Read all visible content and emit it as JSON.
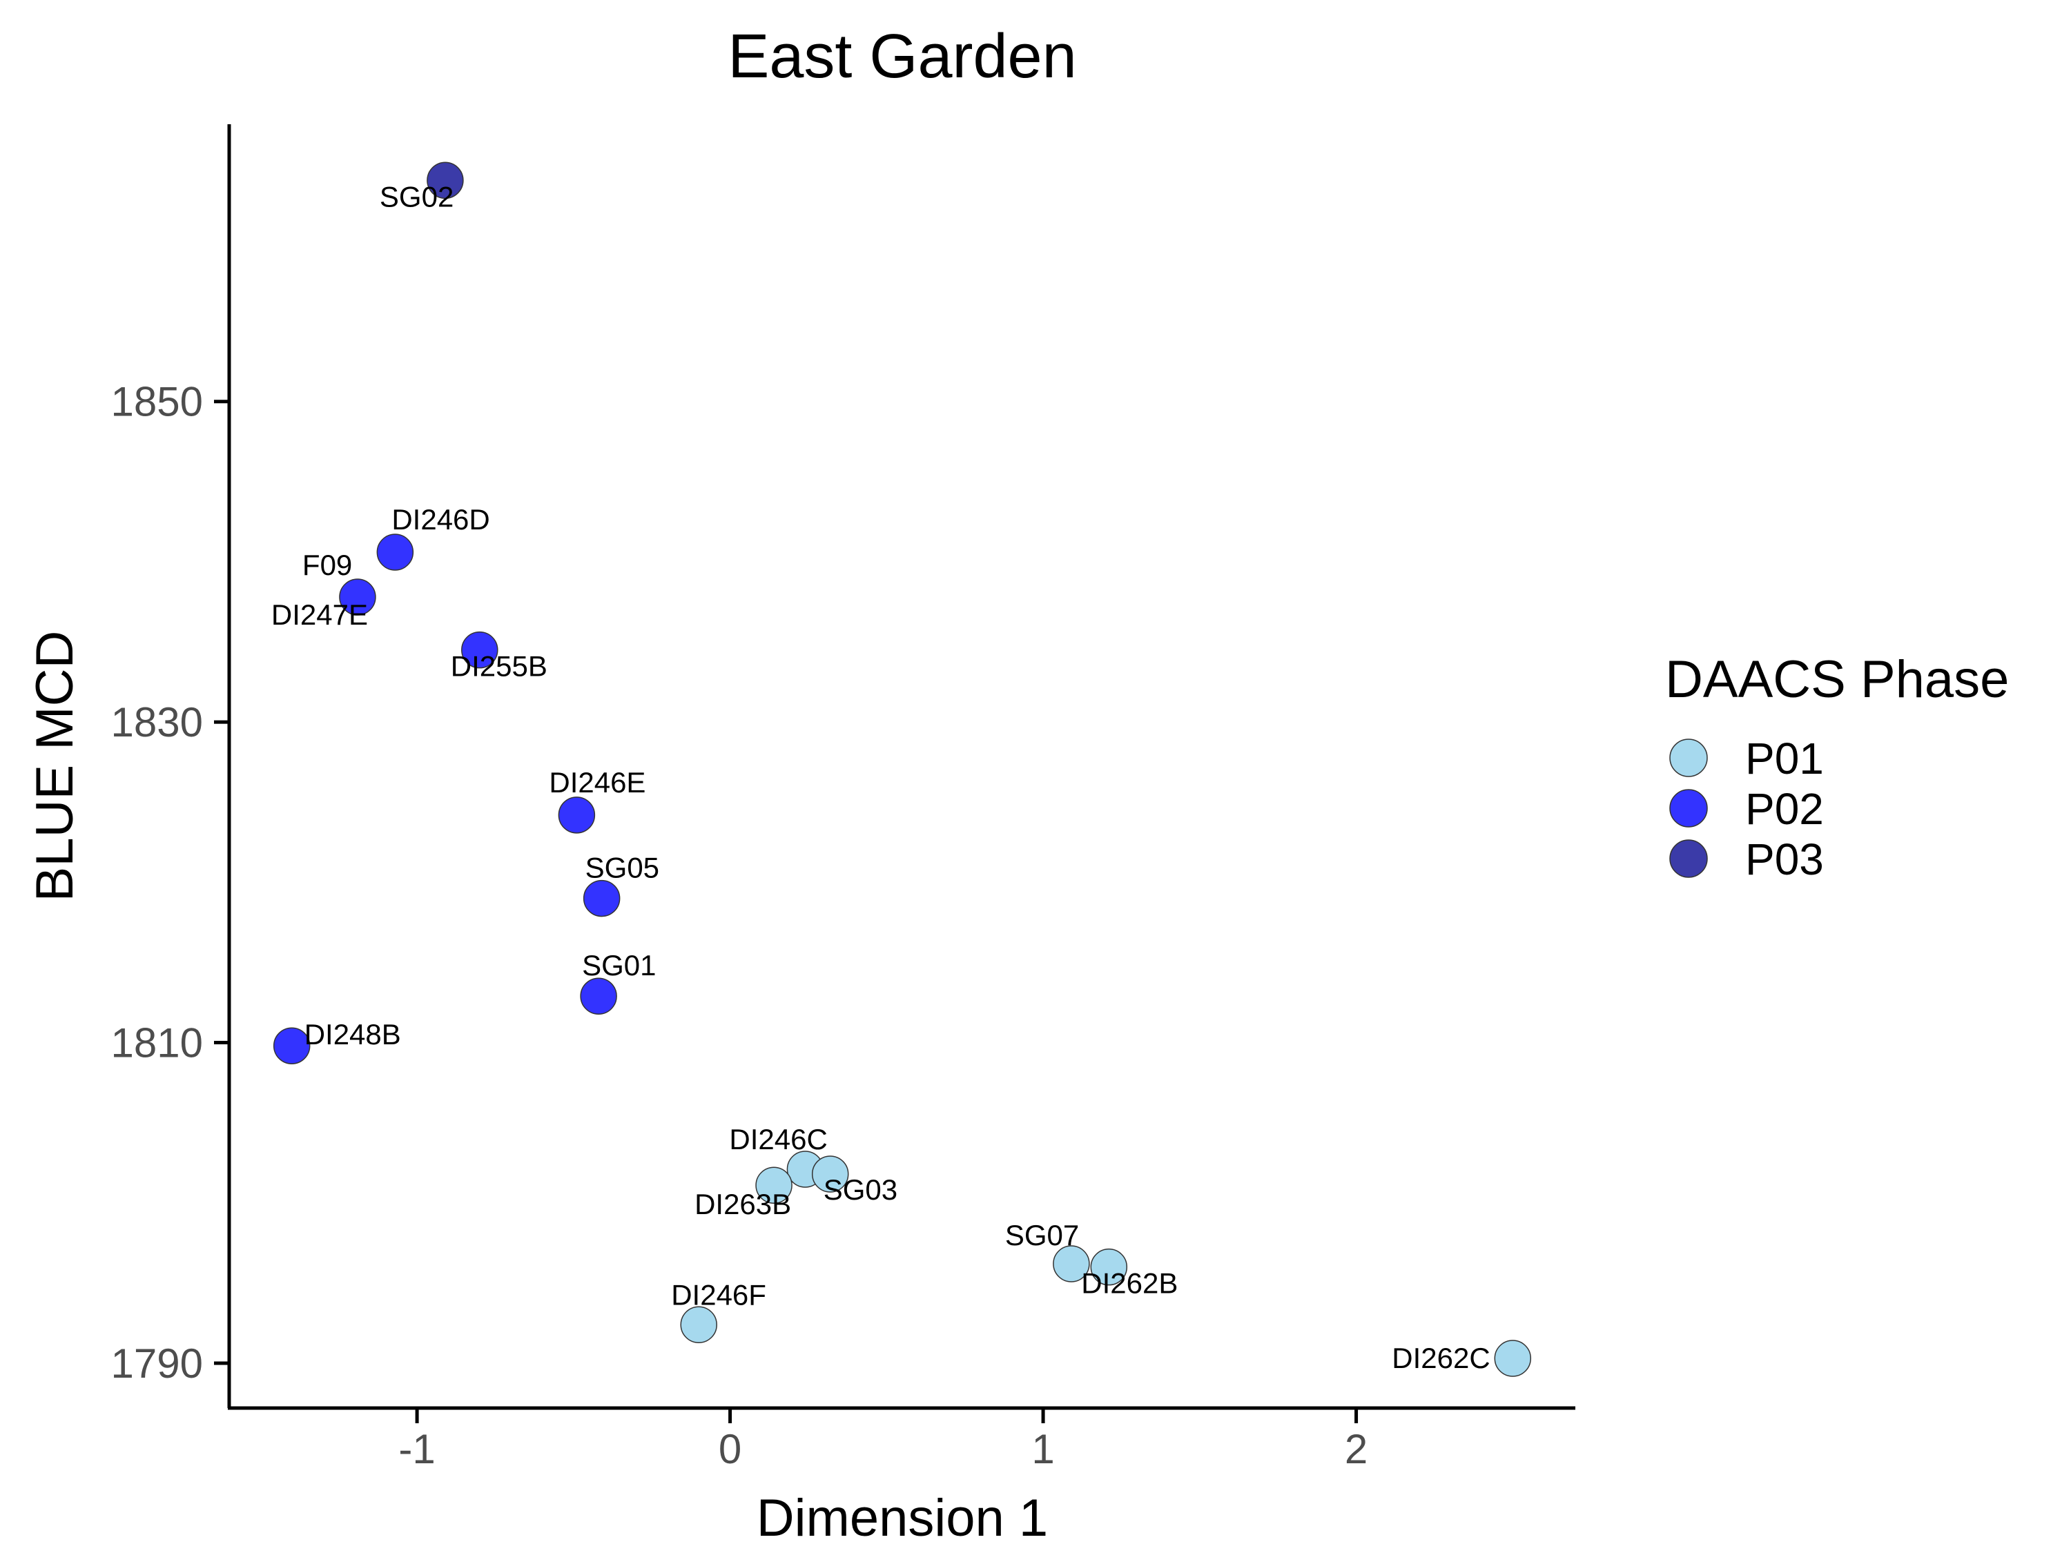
{
  "chart_data": {
    "type": "scatter",
    "title": "East Garden",
    "xlabel": "Dimension 1",
    "ylabel": "BLUE MCD",
    "xlim": [
      -1.6,
      2.7
    ],
    "ylim": [
      1787.2,
      1867.3
    ],
    "xticks": [
      {
        "value": -1,
        "label": "-1"
      },
      {
        "value": 0,
        "label": "0"
      },
      {
        "value": 1,
        "label": "1"
      },
      {
        "value": 2,
        "label": "2"
      }
    ],
    "yticks": [
      {
        "value": 1790,
        "label": "1790"
      },
      {
        "value": 1810,
        "label": "1810"
      },
      {
        "value": 1830,
        "label": "1830"
      },
      {
        "value": 1850,
        "label": "1850"
      }
    ],
    "legend": {
      "title": "DAACS Phase",
      "position": "right",
      "entries": [
        {
          "phase": "P01",
          "label": "P01",
          "color": "#a6d9ee"
        },
        {
          "phase": "P02",
          "label": "P02",
          "color": "#3333ff"
        },
        {
          "phase": "P03",
          "label": "P03",
          "color": "#3b3ba8"
        }
      ]
    },
    "points": [
      {
        "label": "SG02",
        "x": -0.91,
        "y": 1863.8,
        "phase": "P03",
        "label_anchor": "below-left"
      },
      {
        "label": "F09",
        "x": -1.19,
        "y": 1837.8,
        "phase": "P02",
        "label_anchor": "above-left"
      },
      {
        "label": "DI246D",
        "x": -1.07,
        "y": 1840.6,
        "phase": "P02",
        "label_anchor": "below-right"
      },
      {
        "label": "DI247E",
        "x": -1.19,
        "y": 1837.8,
        "phase": "P02",
        "label_anchor": "below-left"
      },
      {
        "label": "DI255B",
        "x": -0.8,
        "y": 1834.5,
        "phase": "P02",
        "label_anchor": "below"
      },
      {
        "label": "DI246E",
        "x": -0.49,
        "y": 1824.2,
        "phase": "P02",
        "label_anchor": "above-right"
      },
      {
        "label": "SG05",
        "x": -0.41,
        "y": 1819.0,
        "phase": "P02",
        "label_anchor": "above-right"
      },
      {
        "label": "SG01",
        "x": -0.42,
        "y": 1812.9,
        "phase": "P02",
        "label_anchor": "above-right"
      },
      {
        "label": "DI248B",
        "x": -1.4,
        "y": 1809.8,
        "phase": "P02",
        "label_anchor": "right"
      },
      {
        "label": "DI246C",
        "x": 0.24,
        "y": 1802.1,
        "phase": "P01",
        "label_anchor": "above-left"
      },
      {
        "label": "SG03",
        "x": 0.32,
        "y": 1801.8,
        "phase": "P01",
        "label_anchor": "below-right"
      },
      {
        "label": "DI263B",
        "x": 0.14,
        "y": 1801.1,
        "phase": "P01",
        "label_anchor": "below-left"
      },
      {
        "label": "SG07",
        "x": 1.09,
        "y": 1796.2,
        "phase": "P01",
        "label_anchor": "above-left"
      },
      {
        "label": "DI262B",
        "x": 1.21,
        "y": 1796.0,
        "phase": "P01",
        "label_anchor": "below"
      },
      {
        "label": "DI246F",
        "x": -0.1,
        "y": 1792.4,
        "phase": "P01",
        "label_anchor": "above-right"
      },
      {
        "label": "DI262C",
        "x": 2.5,
        "y": 1790.3,
        "phase": "P01",
        "label_anchor": "left"
      }
    ]
  }
}
